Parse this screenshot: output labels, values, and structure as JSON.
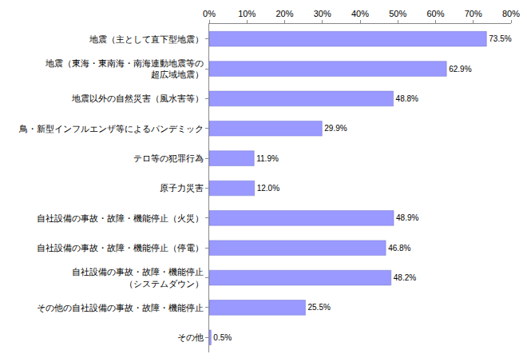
{
  "chart_data": {
    "type": "bar",
    "orientation": "horizontal",
    "categories": [
      "地震（主として直下型地震）",
      "地震（東海・東南海・南海連動地震等の\n超広域地震）",
      "地震以外の自然災害（風水害等）",
      "鳥・新型インフルエンザ等によるパンデミック",
      "テロ等の犯罪行為",
      "原子力災害",
      "自社設備の事故・故障・機能停止（火災）",
      "自社設備の事故・故障・機能停止（停電）",
      "自社設備の事故・故障・機能停止\n（システムダウン）",
      "その他の自社設備の事故・故障・機能停止",
      "その他"
    ],
    "values": [
      73.5,
      62.9,
      48.8,
      29.9,
      11.9,
      12.0,
      48.9,
      46.8,
      48.2,
      25.5,
      0.5
    ],
    "value_labels": [
      "73.5%",
      "62.9%",
      "48.8%",
      "29.9%",
      "11.9%",
      "12.0%",
      "48.9%",
      "46.8%",
      "48.2%",
      "25.5%",
      "0.5%"
    ],
    "color": "#9999ff",
    "xlim": [
      0,
      80
    ],
    "xticks": [
      {
        "value": 0,
        "label": "0%"
      },
      {
        "value": 10,
        "label": "10%"
      },
      {
        "value": 20,
        "label": "20%"
      },
      {
        "value": 30,
        "label": "30%"
      },
      {
        "value": 40,
        "label": "40%"
      },
      {
        "value": 50,
        "label": "50%"
      },
      {
        "value": 60,
        "label": "60%"
      },
      {
        "value": 70,
        "label": "70%"
      },
      {
        "value": 80,
        "label": "80%"
      }
    ],
    "grid": false,
    "data_labels": true
  }
}
